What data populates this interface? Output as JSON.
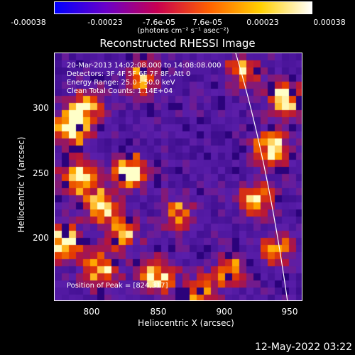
{
  "colorbar": {
    "tick_labels": [
      "-0.00038",
      "-0.00023",
      "-7.6e-05",
      "7.6e-05",
      "0.00023",
      "0.00038"
    ],
    "unit_label": "(photons cm⁻² s⁻¹ asec⁻²)",
    "colors": [
      "#0000ff",
      "#6a00c8",
      "#c80050",
      "#ff6000",
      "#ffd000",
      "#ffffff"
    ]
  },
  "title": "Reconstructed RHESSI Image",
  "info": {
    "time_range": "20-Mar-2013 14:02:08.000 to 14:08:08.000",
    "detectors": "Detectors: 3F 4F 5F 6F 7F 8F, Att 0",
    "energy_range": "Energy Range: 25.0 - 50.0 keV",
    "method": "Clean    Total Counts: 1.14E+04",
    "peak": "Position of Peak = [824,317]"
  },
  "axes": {
    "xlabel": "Heliocentric X (arcsec)",
    "ylabel": "Heliocentric Y (arcsec)",
    "xtick_labels": [
      "800",
      "850",
      "900",
      "950"
    ],
    "ytick_labels": [
      "300",
      "250",
      "200"
    ]
  },
  "timestamp": "12-May-2022 03:22"
}
